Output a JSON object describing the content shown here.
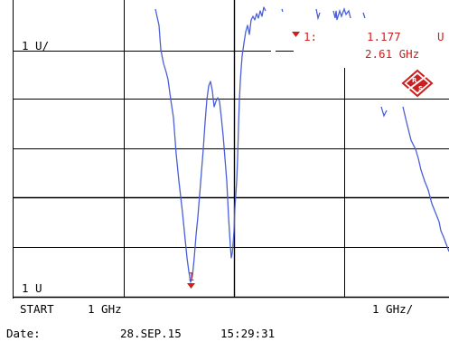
{
  "display": {
    "ref_level_label": "1 U/",
    "bottom_level_label": "1 U",
    "start_label": "START",
    "start_value": "1 GHz",
    "span_label": "1 GHz/"
  },
  "marker": {
    "id_label": "1:",
    "value": "1.177",
    "unit": "U",
    "frequency": "2.61 GHz",
    "trace_marker_label": "1"
  },
  "footer": {
    "date_label": "Date:",
    "date_value": "28.SEP.15",
    "time_value": "15:29:31"
  },
  "colors": {
    "background": "#ffffff",
    "grid": "#000000",
    "trace": "#4a5fd8",
    "marker": "#cc1f1f",
    "text": "#000000"
  },
  "icons": {
    "logo": "rohde-schwarz-logo-icon",
    "marker": "marker-triangle-icon"
  }
}
